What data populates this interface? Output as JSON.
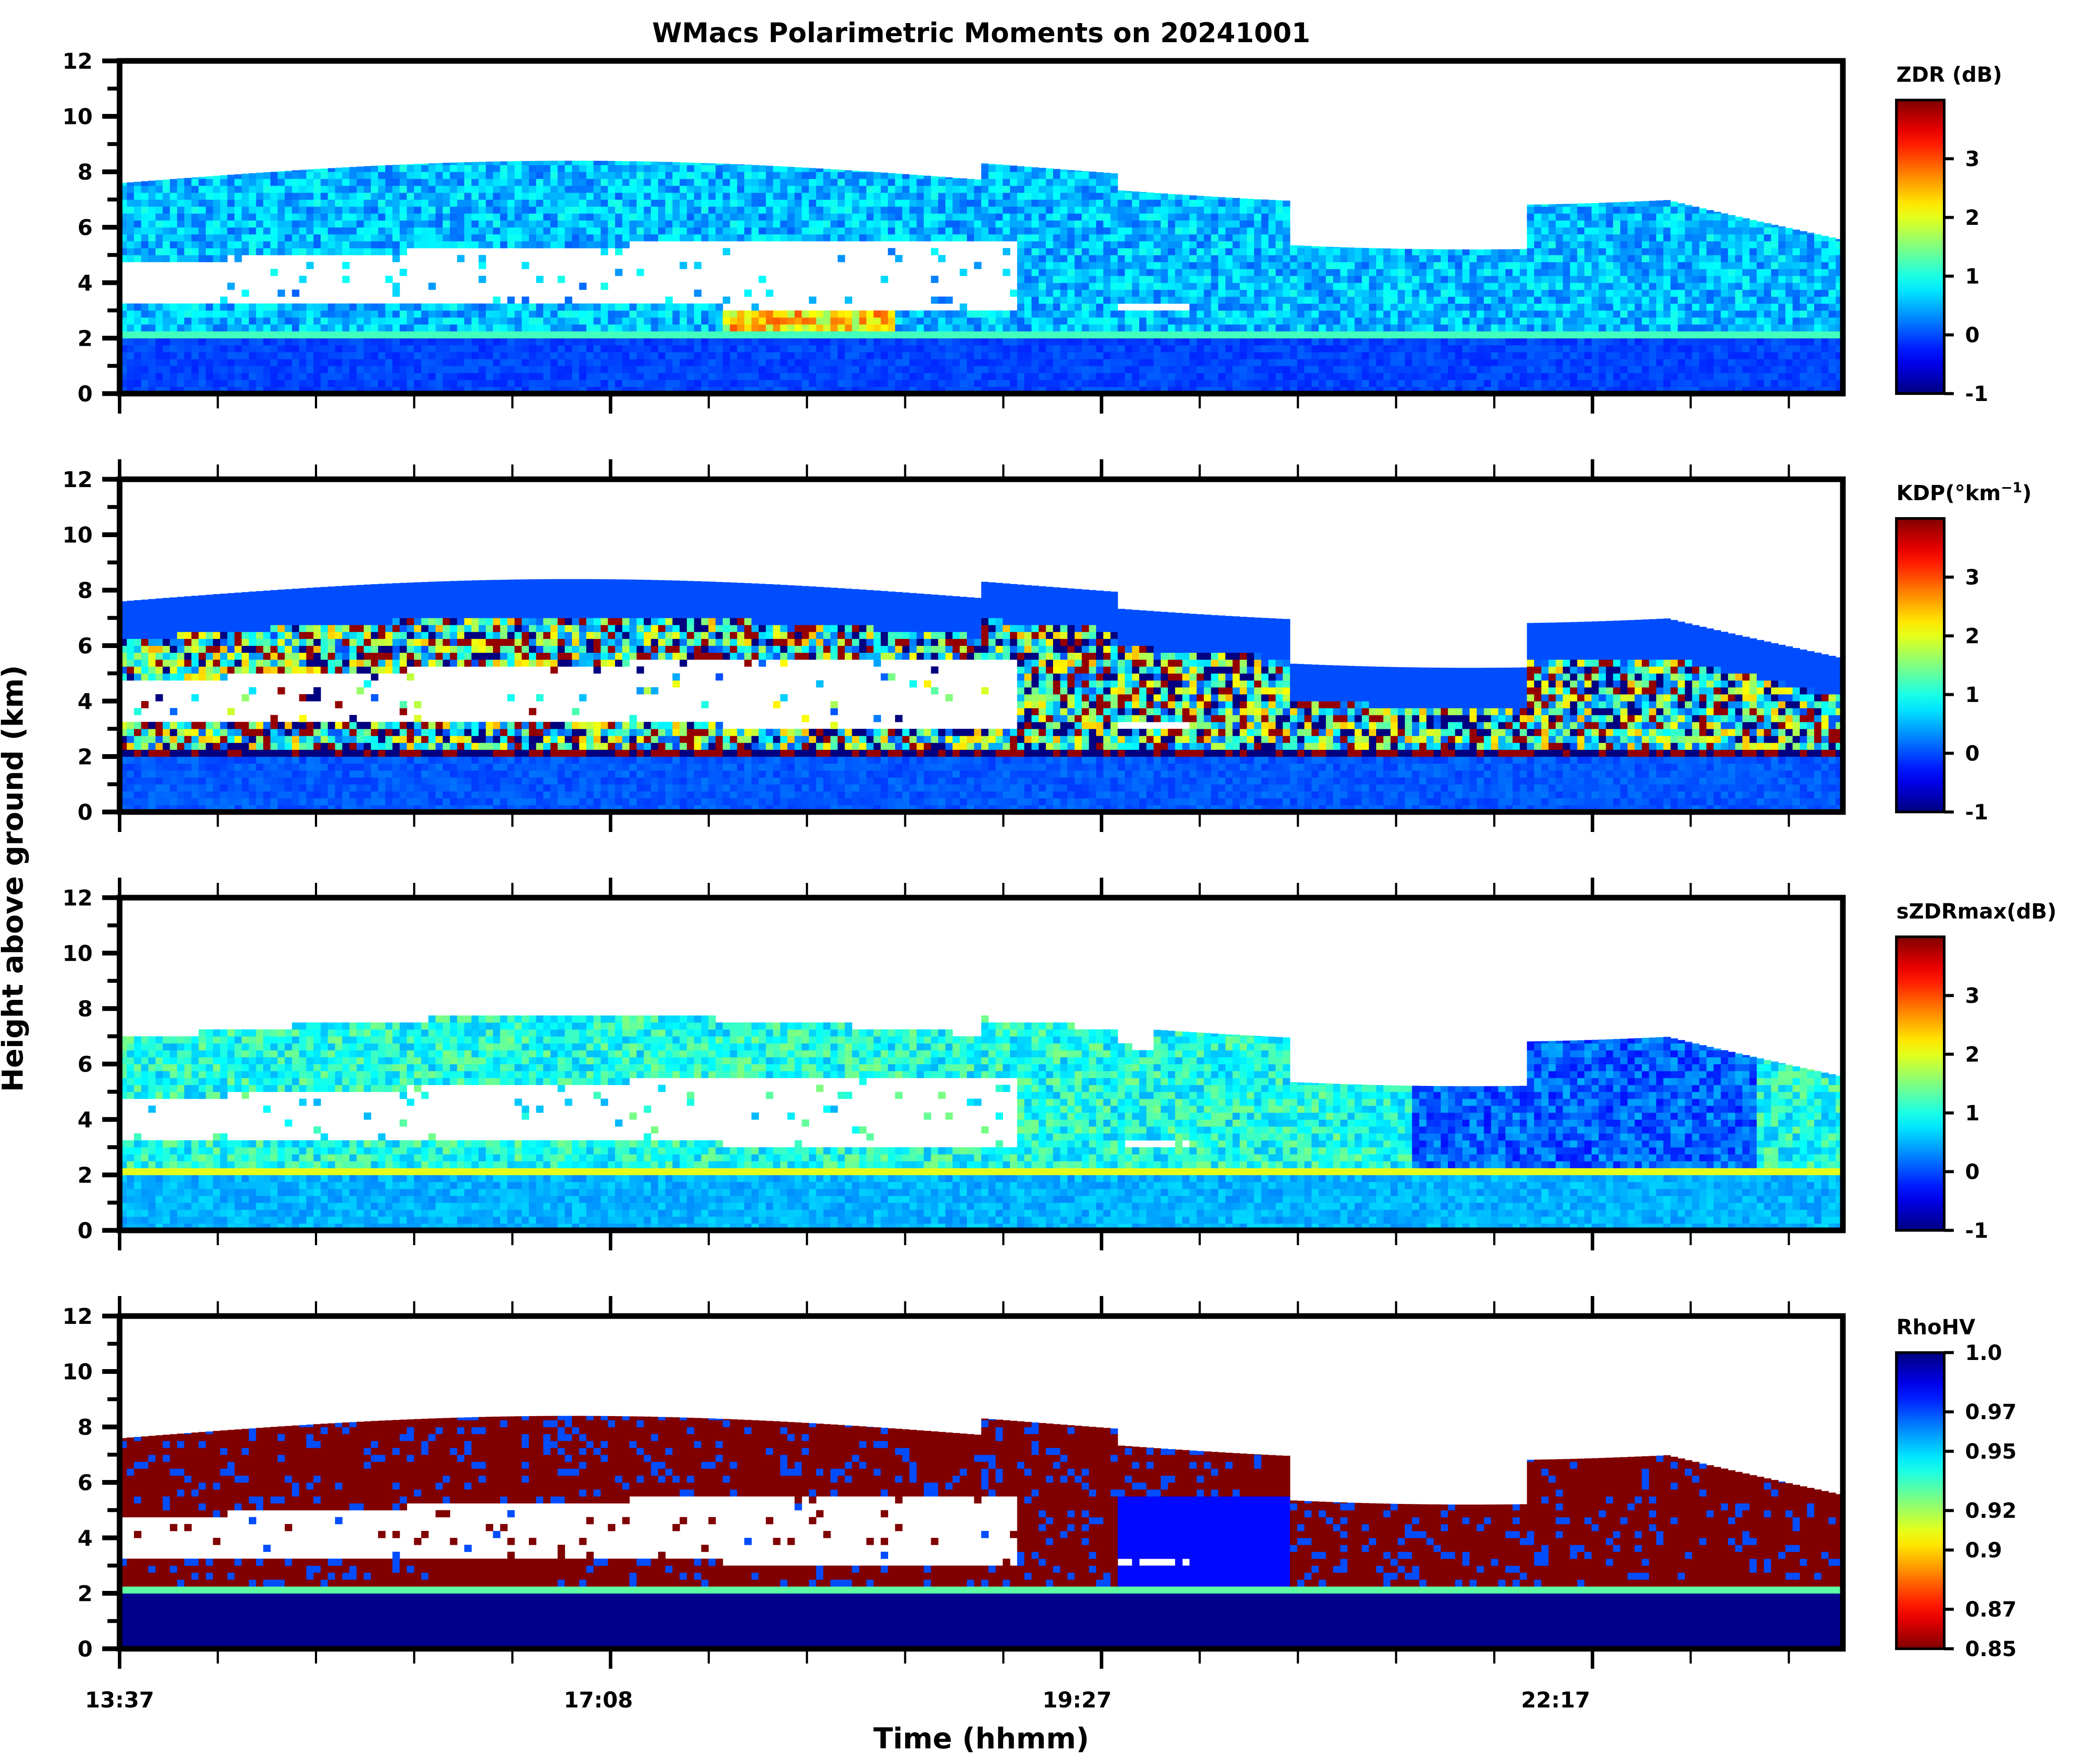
{
  "chart_data": {
    "type": "heatmap",
    "title": "WMacs Polarimetric Moments on 20241001",
    "xlabel": "Time (hhmm)",
    "ylabel": "Height above ground (km)",
    "x_tick_labels": [
      "13:37",
      "17:08",
      "19:27",
      "22:17"
    ],
    "ylim": [
      0,
      12
    ],
    "y_ticks": [
      0,
      2,
      4,
      6,
      8,
      10,
      12
    ],
    "y_tick_labels": [
      "0",
      "2",
      "4",
      "6",
      "8",
      "10",
      "12"
    ],
    "colormap": "jet",
    "panels": [
      {
        "name": "ZDR",
        "colorbar_label": "ZDR (dB)",
        "vmin": -1,
        "vmax": 4,
        "colorbar_ticks": [
          -1,
          0,
          1,
          2,
          3
        ],
        "colorbar_tick_labels": [
          "-1",
          "0",
          "1",
          "2",
          "3"
        ],
        "typical_value_upper_cloud": 0.2,
        "typical_value_near_ground": -0.2
      },
      {
        "name": "KDP",
        "colorbar_label": "KDP(°km",
        "colorbar_label_sup": "−1",
        "colorbar_label_end": ")",
        "vmin": -1,
        "vmax": 4,
        "colorbar_ticks": [
          -1,
          0,
          1,
          2,
          3
        ],
        "colorbar_tick_labels": [
          "-1",
          "0",
          "1",
          "2",
          "3"
        ],
        "typical_value_upper_cloud": 0.0,
        "typical_value_near_ground": 0.0
      },
      {
        "name": "sZDRmax",
        "colorbar_label": "sZDRmax(dB)",
        "vmin": -1,
        "vmax": 4,
        "colorbar_ticks": [
          -1,
          0,
          1,
          2,
          3
        ],
        "colorbar_tick_labels": [
          "-1",
          "0",
          "1",
          "2",
          "3"
        ],
        "typical_value_upper_cloud": 0.7,
        "typical_value_near_ground": 0.3
      },
      {
        "name": "RhoHV",
        "colorbar_label": "RhoHV",
        "vmin": 0.85,
        "vmax": 1.0,
        "reversed": true,
        "colorbar_ticks": [
          0.85,
          0.87,
          0.9,
          0.92,
          0.95,
          0.97,
          1.0
        ],
        "colorbar_tick_labels": [
          "0.85",
          "0.87",
          "0.9",
          "0.92",
          "0.95",
          "0.97",
          "1.0"
        ],
        "typical_value_upper_cloud": 0.85,
        "typical_value_near_ground": 1.0
      }
    ],
    "melting_layer_height_km": 2.0,
    "cloud_top_range_km": [
      5.5,
      8.8
    ],
    "grid": false
  }
}
